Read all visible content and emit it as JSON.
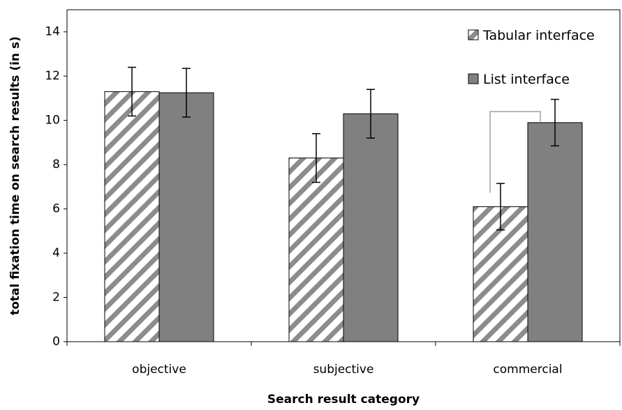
{
  "chart_data": {
    "type": "bar",
    "title": "",
    "xlabel": "Search result category",
    "ylabel": "total fixation time on search results (in s)",
    "categories": [
      "objective",
      "subjective",
      "commercial"
    ],
    "ylim": [
      0,
      15
    ],
    "yticks": [
      0,
      2,
      4,
      6,
      8,
      10,
      12,
      14
    ],
    "series": [
      {
        "name": "Tabular interface",
        "pattern": "hatched",
        "values": [
          11.3,
          8.3,
          6.1
        ],
        "error": [
          1.1,
          1.1,
          1.05
        ]
      },
      {
        "name": "List interface",
        "pattern": "solid",
        "color": "#808080",
        "values": [
          11.25,
          10.3,
          9.9
        ],
        "error": [
          1.1,
          1.1,
          1.05
        ]
      }
    ],
    "legend_position": "top-right",
    "significance_bracket": {
      "category": "commercial"
    }
  }
}
